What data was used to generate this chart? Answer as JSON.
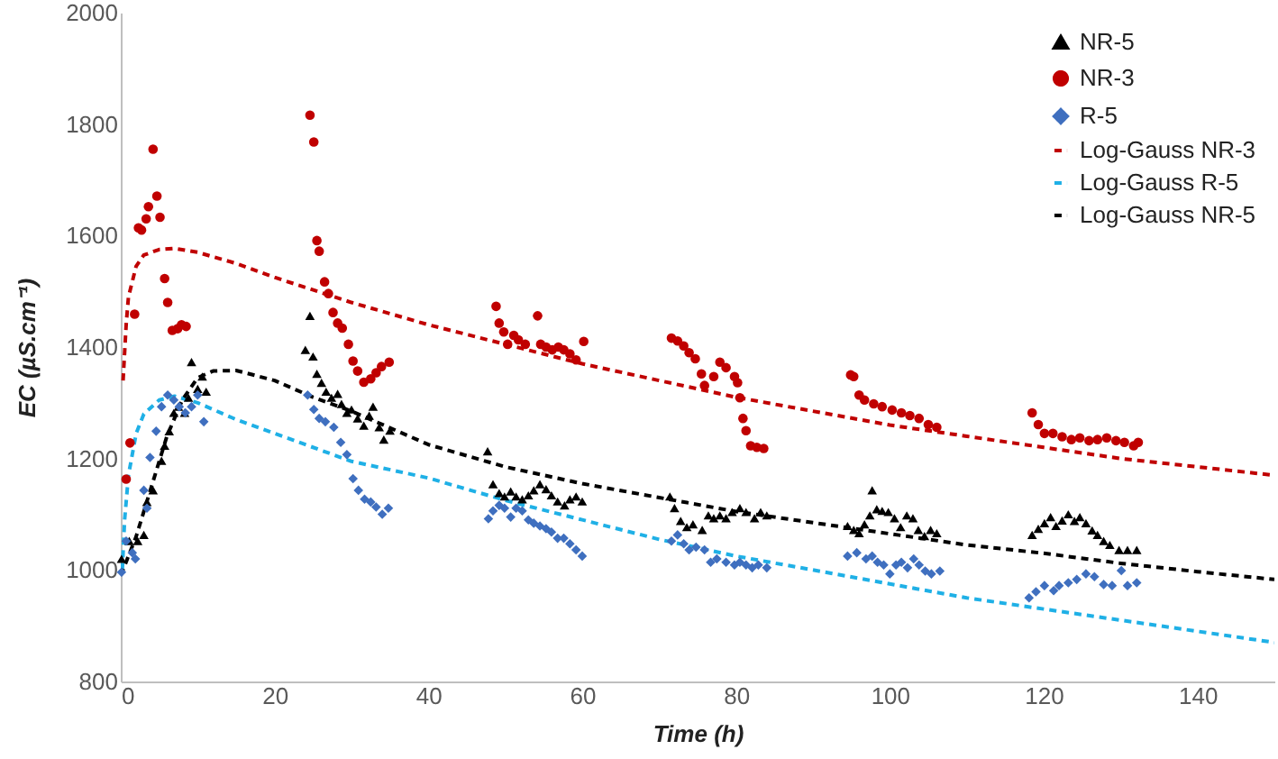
{
  "chart_data": {
    "type": "scatter",
    "xlabel": "Time (h)",
    "ylabel": "EC (µS.cm⁻¹)",
    "xlim": [
      0,
      150
    ],
    "ylim": [
      800,
      2000
    ],
    "xticks": [
      0,
      20,
      40,
      60,
      80,
      100,
      120,
      140
    ],
    "yticks": [
      800,
      1000,
      1200,
      1400,
      1600,
      1800,
      2000
    ],
    "legend": "top right",
    "series": [
      {
        "name": "NR-5",
        "type": "scatter",
        "marker": "triangle",
        "color": "#000000",
        "x": [
          0.1,
          1.1,
          2.2,
          3.0,
          3.4,
          4.2,
          5.3,
          5.7,
          6.3,
          6.9,
          7.5,
          8.3,
          8.8,
          9.2,
          10.0,
          10.6,
          11.1,
          24.0,
          24.6,
          25.0,
          25.5,
          26.1,
          26.7,
          27.4,
          28.2,
          28.7,
          29.4,
          30.0,
          30.8,
          31.6,
          32.3,
          32.8,
          33.6,
          34.2,
          35.0,
          47.7,
          48.4,
          49.2,
          49.9,
          50.7,
          51.4,
          52.2,
          53.0,
          53.7,
          54.5,
          55.3,
          56.0,
          56.8,
          57.7,
          58.4,
          59.2,
          60.0,
          71.4,
          72.0,
          72.8,
          73.6,
          74.4,
          75.6,
          76.4,
          77.1,
          77.9,
          78.7,
          79.5,
          80.5,
          81.3,
          82.4,
          83.2,
          84.0,
          94.5,
          95.3,
          96.0,
          96.7,
          97.4,
          97.7,
          98.3,
          99.0,
          99.8,
          100.6,
          101.4,
          102.2,
          103.0,
          103.7,
          104.5,
          105.3,
          106.1,
          118.5,
          119.3,
          120.1,
          120.9,
          121.6,
          122.4,
          123.2,
          124.0,
          124.7,
          125.5,
          126.3,
          127.0,
          127.8,
          128.6,
          129.8,
          130.9,
          132.1
        ],
        "values": [
          1020,
          1052,
          1052,
          1063,
          1122,
          1143,
          1196,
          1223,
          1249,
          1282,
          1293,
          1282,
          1309,
          1373,
          1325,
          1347,
          1320,
          1395,
          1456,
          1383,
          1352,
          1336,
          1320,
          1309,
          1316,
          1298,
          1282,
          1288,
          1272,
          1259,
          1277,
          1293,
          1256,
          1234,
          1250,
          1213,
          1154,
          1138,
          1132,
          1141,
          1132,
          1127,
          1134,
          1143,
          1154,
          1145,
          1134,
          1123,
          1116,
          1127,
          1132,
          1123,
          1132,
          1111,
          1088,
          1077,
          1082,
          1072,
          1098,
          1093,
          1098,
          1093,
          1104,
          1111,
          1104,
          1093,
          1104,
          1098,
          1079,
          1072,
          1066,
          1082,
          1098,
          1143,
          1109,
          1106,
          1104,
          1093,
          1077,
          1098,
          1093,
          1072,
          1061,
          1072,
          1066,
          1063,
          1074,
          1084,
          1095,
          1079,
          1089,
          1100,
          1088,
          1095,
          1084,
          1071,
          1063,
          1052,
          1045,
          1036,
          1036,
          1036
        ]
      },
      {
        "name": "NR-3",
        "type": "scatter",
        "marker": "circle",
        "color": "#c00000",
        "x": [
          0.7,
          1.2,
          1.8,
          2.3,
          2.7,
          3.3,
          3.6,
          4.2,
          4.7,
          5.1,
          5.7,
          6.1,
          6.7,
          7.4,
          7.9,
          8.5,
          24.6,
          25.1,
          25.5,
          25.8,
          26.5,
          27.0,
          27.6,
          28.2,
          28.8,
          29.6,
          30.2,
          30.8,
          31.6,
          32.5,
          33.2,
          33.9,
          34.9,
          48.8,
          49.2,
          49.8,
          50.3,
          51.1,
          51.7,
          52.6,
          54.2,
          54.6,
          55.3,
          56.1,
          56.9,
          57.6,
          58.4,
          59.2,
          60.2,
          71.6,
          72.4,
          73.2,
          73.9,
          74.7,
          75.5,
          75.9,
          77.1,
          77.9,
          78.7,
          79.8,
          80.2,
          80.5,
          80.9,
          81.3,
          81.9,
          82.7,
          83.6,
          94.9,
          95.3,
          96.0,
          96.7,
          97.9,
          99.0,
          100.3,
          101.5,
          102.6,
          103.8,
          105.0,
          106.1,
          118.5,
          119.3,
          120.1,
          121.2,
          122.4,
          123.6,
          124.7,
          125.9,
          127.0,
          128.2,
          129.4,
          130.5,
          131.7,
          132.3
        ],
        "values": [
          1163,
          1228,
          1459,
          1614,
          1610,
          1630,
          1652,
          1755,
          1671,
          1633,
          1523,
          1480,
          1430,
          1433,
          1440,
          1437,
          1816,
          1768,
          1591,
          1572,
          1517,
          1496,
          1462,
          1443,
          1434,
          1405,
          1375,
          1357,
          1337,
          1343,
          1354,
          1365,
          1373,
          1473,
          1443,
          1427,
          1405,
          1421,
          1413,
          1405,
          1456,
          1405,
          1400,
          1395,
          1400,
          1395,
          1388,
          1377,
          1410,
          1416,
          1411,
          1402,
          1390,
          1379,
          1352,
          1331,
          1347,
          1373,
          1363,
          1347,
          1336,
          1309,
          1272,
          1250,
          1223,
          1220,
          1218,
          1350,
          1347,
          1314,
          1305,
          1298,
          1293,
          1287,
          1282,
          1277,
          1272,
          1261,
          1256,
          1282,
          1261,
          1245,
          1245,
          1239,
          1234,
          1237,
          1232,
          1234,
          1237,
          1232,
          1229,
          1223,
          1229
        ]
      },
      {
        "name": "R-5",
        "type": "scatter",
        "marker": "diamond",
        "color": "#3f6fbf",
        "x": [
          0.1,
          0.7,
          1.5,
          1.9,
          3.0,
          3.4,
          3.8,
          4.6,
          5.3,
          6.1,
          6.9,
          7.6,
          8.4,
          9.2,
          10.0,
          10.8,
          24.3,
          25.1,
          25.8,
          26.6,
          27.7,
          28.6,
          29.4,
          30.2,
          30.9,
          31.7,
          32.5,
          33.2,
          34.0,
          34.8,
          47.8,
          48.4,
          49.2,
          49.9,
          50.7,
          51.4,
          52.2,
          53.0,
          53.7,
          54.5,
          55.3,
          56.0,
          56.8,
          57.6,
          58.4,
          59.2,
          60.0,
          71.6,
          72.4,
          73.2,
          73.9,
          74.8,
          75.9,
          76.7,
          77.5,
          78.7,
          79.8,
          80.5,
          81.3,
          82.1,
          82.9,
          84.0,
          94.5,
          95.7,
          96.9,
          97.7,
          98.4,
          99.2,
          100.0,
          100.8,
          101.5,
          102.3,
          103.1,
          103.8,
          104.6,
          105.4,
          106.5,
          118.1,
          119.0,
          120.1,
          121.3,
          122.0,
          123.2,
          124.3,
          125.5,
          126.6,
          127.8,
          128.9,
          130.1,
          130.9,
          132.1
        ],
        "values": [
          996,
          1052,
          1031,
          1020,
          1143,
          1111,
          1202,
          1249,
          1293,
          1314,
          1305,
          1293,
          1282,
          1293,
          1314,
          1266,
          1314,
          1288,
          1272,
          1266,
          1256,
          1229,
          1207,
          1164,
          1143,
          1127,
          1122,
          1113,
          1100,
          1111,
          1092,
          1106,
          1116,
          1111,
          1095,
          1111,
          1106,
          1090,
          1084,
          1079,
          1074,
          1068,
          1057,
          1057,
          1047,
          1036,
          1025,
          1052,
          1063,
          1047,
          1036,
          1041,
          1036,
          1014,
          1020,
          1014,
          1009,
          1014,
          1009,
          1004,
          1009,
          1004,
          1025,
          1031,
          1020,
          1025,
          1014,
          1009,
          993,
          1009,
          1014,
          1004,
          1020,
          1009,
          998,
          993,
          998,
          950,
          961,
          972,
          963,
          972,
          977,
          983,
          993,
          988,
          974,
          972,
          999,
          972,
          977
        ]
      },
      {
        "name": "Log-Gauss NR-3",
        "type": "line",
        "line_style": "dashed",
        "color": "#c00000",
        "x": [
          0.3,
          0.7,
          1,
          2,
          3,
          5,
          7,
          10,
          15,
          20,
          30,
          40,
          50,
          60,
          70,
          80,
          90,
          100,
          110,
          120,
          130,
          140,
          150
        ],
        "values": [
          1340,
          1440,
          1490,
          1545,
          1565,
          1575,
          1577,
          1570,
          1550,
          1525,
          1480,
          1440,
          1405,
          1370,
          1340,
          1310,
          1285,
          1260,
          1240,
          1220,
          1200,
          1185,
          1170
        ]
      },
      {
        "name": "Log-Gauss R-5",
        "type": "line",
        "line_style": "dashed",
        "color": "#1fb0e6",
        "x": [
          0.2,
          0.5,
          1,
          2,
          3,
          5,
          7,
          10,
          15,
          20,
          30,
          40,
          50,
          60,
          70,
          80,
          90,
          100,
          110,
          120,
          130,
          140,
          150
        ],
        "values": [
          1000,
          1090,
          1170,
          1245,
          1280,
          1305,
          1312,
          1300,
          1270,
          1245,
          1195,
          1165,
          1125,
          1090,
          1055,
          1025,
          1000,
          975,
          950,
          930,
          910,
          890,
          870
        ]
      },
      {
        "name": "Log-Gauss NR-5",
        "type": "line",
        "line_style": "dashed",
        "color": "#000000",
        "x": [
          0,
          2,
          4,
          6,
          8,
          10,
          12,
          15,
          20,
          25,
          30,
          40,
          50,
          60,
          70,
          80,
          90,
          100,
          110,
          120,
          130,
          140,
          150
        ],
        "values": [
          990,
          1060,
          1150,
          1240,
          1305,
          1345,
          1357,
          1358,
          1340,
          1310,
          1285,
          1225,
          1185,
          1155,
          1130,
          1105,
          1085,
          1065,
          1045,
          1030,
          1012,
          997,
          983
        ]
      }
    ]
  }
}
